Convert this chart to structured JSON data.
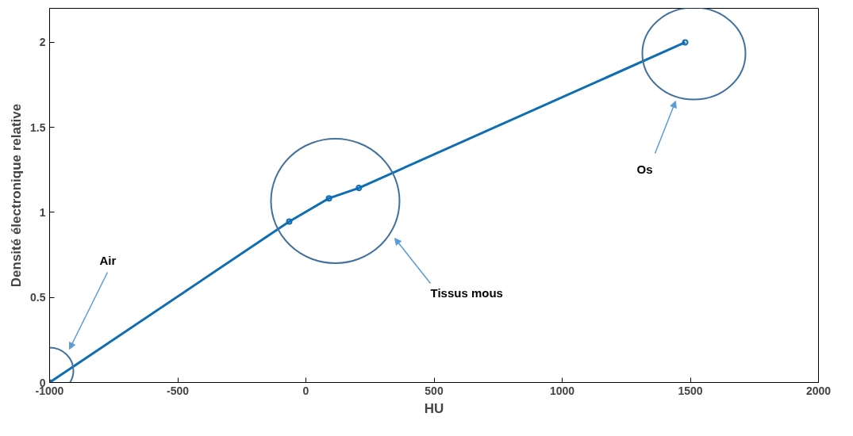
{
  "chart_data": {
    "type": "line",
    "xlabel": "HU",
    "ylabel": "Densité électronique relative",
    "x": [
      -1000,
      -65,
      90,
      207,
      1480
    ],
    "series": [
      {
        "color": "#0f6db3",
        "values": [
          0,
          0.946,
          1.083,
          1.144,
          2.0
        ]
      }
    ],
    "xlim": [
      -1000,
      2000
    ],
    "ylim": [
      0,
      2.2
    ],
    "xticks": [
      -1000,
      -500,
      0,
      500,
      1000,
      1500,
      2000
    ],
    "yticks": [
      0,
      0.5,
      1,
      1.5,
      2
    ],
    "grid": false,
    "marker": "circle",
    "line_style": "solid",
    "annotations": [
      "Air",
      "Tissus mous",
      "Os"
    ]
  }
}
